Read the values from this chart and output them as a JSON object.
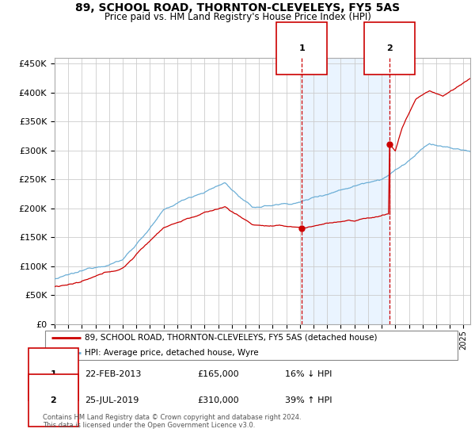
{
  "title": "89, SCHOOL ROAD, THORNTON-CLEVELEYS, FY5 5AS",
  "subtitle": "Price paid vs. HM Land Registry's House Price Index (HPI)",
  "legend_line1": "89, SCHOOL ROAD, THORNTON-CLEVELEYS, FY5 5AS (detached house)",
  "legend_line2": "HPI: Average price, detached house, Wyre",
  "ann1": {
    "label": "1",
    "date": "22-FEB-2013",
    "price": 165000,
    "price_str": "£165,000",
    "pct": "16% ↓ HPI",
    "year": 2013.13
  },
  "ann2": {
    "label": "2",
    "date": "25-JUL-2019",
    "price": 310000,
    "price_str": "£310,000",
    "pct": "39% ↑ HPI",
    "year": 2019.57
  },
  "footer": "Contains HM Land Registry data © Crown copyright and database right 2024.\nThis data is licensed under the Open Government Licence v3.0.",
  "hpi_color": "#6baed6",
  "price_color": "#cc0000",
  "vline_color": "#cc0000",
  "shade_color": "#ddeeff",
  "ylim": [
    0,
    460000
  ],
  "yticks": [
    0,
    50000,
    100000,
    150000,
    200000,
    250000,
    300000,
    350000,
    400000,
    450000
  ],
  "xstart": 1995.0,
  "xend": 2025.5
}
